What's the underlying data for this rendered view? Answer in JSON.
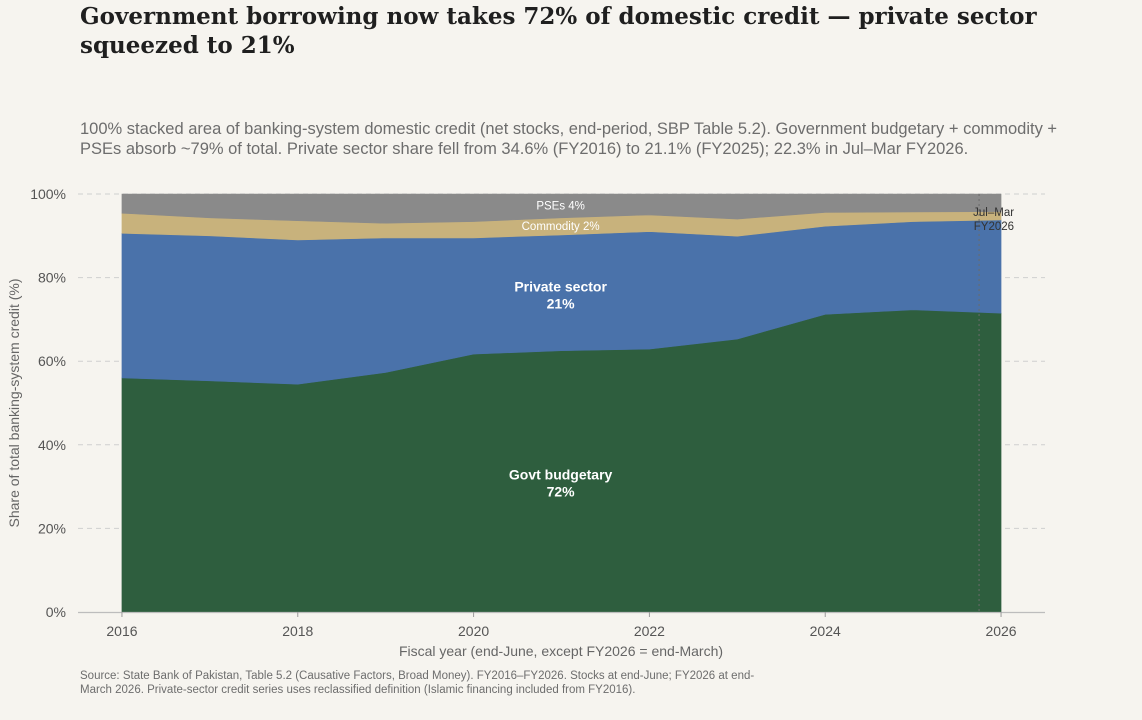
{
  "chart_data": {
    "type": "area",
    "stacked": true,
    "normalized": true,
    "title": "Government borrowing now takes 72% of domestic credit — private sector squeezed to 21%",
    "subtitle": "100% stacked area of banking-system domestic credit (net stocks, end-period, SBP Table 5.2). Government budgetary + commodity + PSEs absorb ~79% of total. Private sector share fell from 34.6% (FY2016) to 21.1% (FY2025); 22.3% in Jul–Mar FY2026.",
    "source": "Source: State Bank of Pakistan, Table 5.2 (Causative Factors, Broad Money). FY2016–FY2026. Stocks at end-June; FY2026 at end-March 2026. Private-sector credit series uses reclassified definition (Islamic financing included from FY2016).",
    "xlabel": "Fiscal year (end-June, except FY2026 = end-March)",
    "ylabel": "Share of total banking-system credit (%)",
    "xlim": [
      2015.5,
      2026.5
    ],
    "ylim": [
      0,
      100
    ],
    "x_ticks": [
      2016,
      2018,
      2020,
      2022,
      2024,
      2026
    ],
    "y_ticks": [
      0,
      20,
      40,
      60,
      80,
      100
    ],
    "y_tick_labels": [
      "0%",
      "20%",
      "40%",
      "60%",
      "80%",
      "100%"
    ],
    "grid": "horizontal-dashed",
    "x": [
      2016,
      2017,
      2018,
      2019,
      2020,
      2021,
      2022,
      2023,
      2024,
      2025,
      2026
    ],
    "series": [
      {
        "name": "Govt budgetary",
        "color": "#2e5e3e",
        "values": [
          56.0,
          55.3,
          54.5,
          57.3,
          61.7,
          62.5,
          62.9,
          65.3,
          71.2,
          72.3,
          71.5
        ]
      },
      {
        "name": "Private sector",
        "color": "#4a72aa",
        "values": [
          34.6,
          34.7,
          34.5,
          32.2,
          27.8,
          27.7,
          28.1,
          24.6,
          21.1,
          21.1,
          22.3
        ]
      },
      {
        "name": "Commodity",
        "color": "#c8b27c",
        "values": [
          4.8,
          4.3,
          4.6,
          3.5,
          3.9,
          4.1,
          4.0,
          4.1,
          3.3,
          2.3,
          2.0
        ]
      },
      {
        "name": "PSEs",
        "color": "#8a8a8a",
        "values": [
          4.6,
          5.7,
          6.4,
          7.0,
          6.6,
          5.7,
          5.0,
          6.0,
          4.4,
          4.3,
          4.2
        ]
      }
    ],
    "inside_labels": [
      {
        "series": "Govt budgetary",
        "line1": "Govt budgetary",
        "line2": "72%",
        "x": 2020.99,
        "y": 31.0
      },
      {
        "series": "Private sector",
        "line1": "Private sector",
        "line2": "21%",
        "x": 2020.99,
        "y": 76.0
      },
      {
        "series": "Commodity",
        "line1": "Commodity 2%",
        "x": 2020.99,
        "y": 92.3
      },
      {
        "series": "PSEs",
        "line1": "PSEs 4%",
        "x": 2020.99,
        "y": 97.3
      }
    ],
    "annotation": {
      "x": 2025.75,
      "line1": "Jul–Mar",
      "line2": "FY2026"
    }
  }
}
